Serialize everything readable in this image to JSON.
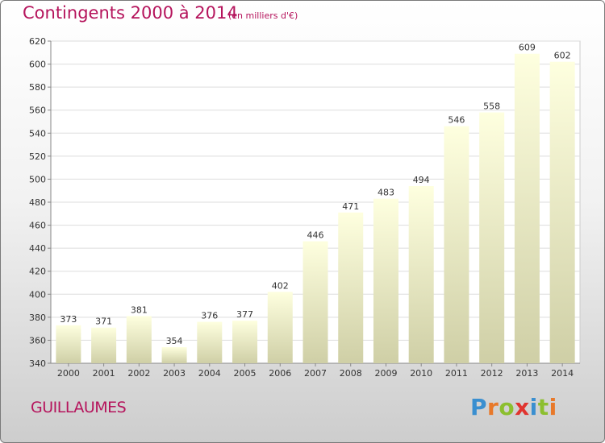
{
  "title": "Contingents 2000 à 2014",
  "subtitle": "(en milliers d'€)",
  "commune": "GUILLAUMES",
  "logo": {
    "letters": [
      "P",
      "r",
      "o",
      "x",
      "i",
      "t",
      "i"
    ],
    "colors": [
      "#3a8fd0",
      "#e8792a",
      "#8cbf2f",
      "#e0342f",
      "#3a8fd0",
      "#8cbf2f",
      "#e8792a"
    ]
  },
  "chart_data": {
    "type": "bar",
    "title": "Contingents 2000 à 2014",
    "subtitle": "(en milliers d'€)",
    "categories": [
      "2000",
      "2001",
      "2002",
      "2003",
      "2004",
      "2005",
      "2006",
      "2007",
      "2008",
      "2009",
      "2010",
      "2011",
      "2012",
      "2013",
      "2014"
    ],
    "values": [
      373,
      371,
      381,
      354,
      376,
      377,
      402,
      446,
      471,
      483,
      494,
      546,
      558,
      609,
      602
    ],
    "ylim": [
      340,
      620
    ],
    "yticks": [
      340,
      360,
      380,
      400,
      420,
      440,
      460,
      480,
      500,
      520,
      540,
      560,
      580,
      600,
      620
    ],
    "grid": true,
    "data_labels": true,
    "bar_color_top": "#feffdf",
    "bar_color_bottom": "#cfcfa6",
    "grid_color": "#dddddd",
    "accent": "#b5145c"
  }
}
